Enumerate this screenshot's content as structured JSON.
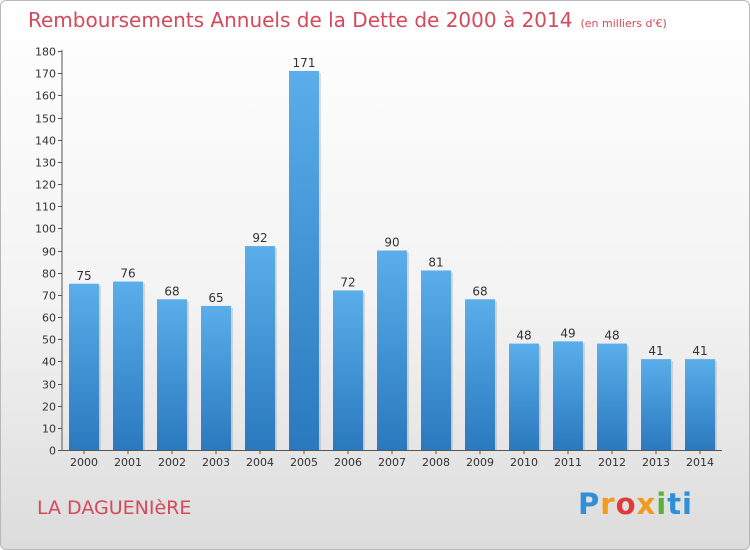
{
  "title": "Remboursements Annuels de la Dette de 2000 à 2014",
  "unit": "(en milliers d'€)",
  "commune": "LA DAGUENIèRE",
  "logo": [
    "P",
    "r",
    "o",
    "x",
    "i",
    "ti"
  ],
  "colors": {
    "accent": "#d44a5a",
    "bar_top": "#5aaeea",
    "bar_bottom": "#2a79be"
  },
  "chart_data": {
    "type": "bar",
    "categories": [
      "2000",
      "2001",
      "2002",
      "2003",
      "2004",
      "2005",
      "2006",
      "2007",
      "2008",
      "2009",
      "2010",
      "2011",
      "2012",
      "2013",
      "2014"
    ],
    "values": [
      75,
      76,
      68,
      65,
      92,
      171,
      72,
      90,
      81,
      68,
      48,
      49,
      48,
      41,
      41
    ],
    "title": "Remboursements Annuels de la Dette de 2000 à 2014",
    "xlabel": "",
    "ylabel": "",
    "ylim": [
      0,
      180
    ],
    "ytick_step": 10,
    "grid": false,
    "legend": "none"
  }
}
